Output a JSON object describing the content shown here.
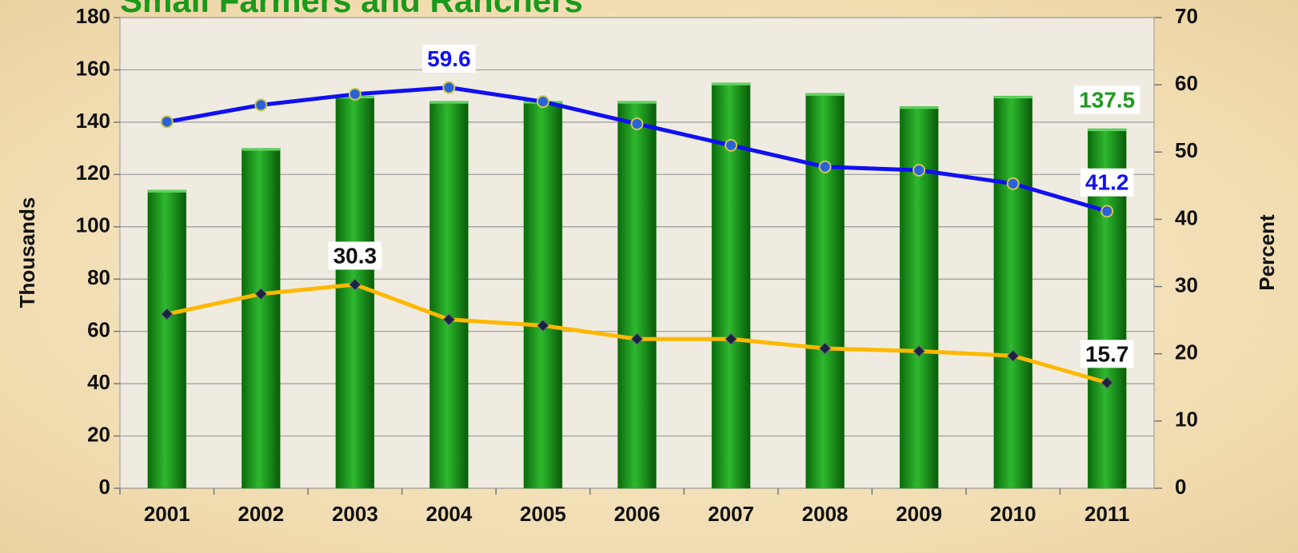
{
  "chart_data": {
    "type": "bar",
    "title": "Small Farmers and Ranchers",
    "y_label": "Thousands",
    "y2_label": "Percent",
    "categories": [
      "2001",
      "2002",
      "2003",
      "2004",
      "2005",
      "2006",
      "2007",
      "2008",
      "2009",
      "2010",
      "2011"
    ],
    "ylim": [
      0,
      180
    ],
    "yticks": [
      0,
      20,
      40,
      60,
      80,
      100,
      120,
      140,
      160,
      180
    ],
    "y2lim": [
      0,
      70
    ],
    "y2ticks": [
      0,
      10,
      20,
      30,
      40,
      50,
      60,
      70
    ],
    "grid": true,
    "series": [
      {
        "type": "bar",
        "color": "#1f9a1f",
        "label_color": "#1f9a1f",
        "values": [
          114,
          130,
          150,
          148,
          148,
          148,
          155,
          151,
          146,
          150,
          137.5
        ],
        "value_labels": [
          null,
          null,
          null,
          null,
          null,
          null,
          null,
          null,
          null,
          null,
          "137.5"
        ]
      },
      {
        "type": "line",
        "axis": "y2",
        "color": "#1010f0",
        "marker": "circle",
        "marker_color": "#2a62d8",
        "label_color": "#1010f0",
        "values": [
          54.5,
          57.0,
          58.6,
          59.6,
          57.5,
          54.2,
          51.0,
          47.8,
          47.3,
          45.3,
          41.2
        ],
        "value_labels": [
          null,
          null,
          null,
          "59.6",
          null,
          null,
          null,
          null,
          null,
          null,
          "41.2"
        ]
      },
      {
        "type": "line",
        "axis": "y2",
        "color": "#ffb800",
        "marker": "diamond",
        "marker_color": "#1a2440",
        "label_color": "#111111",
        "values": [
          25.9,
          28.9,
          30.3,
          25.1,
          24.2,
          22.2,
          22.2,
          20.8,
          20.4,
          19.7,
          15.7
        ],
        "value_labels": [
          null,
          null,
          "30.3",
          null,
          null,
          null,
          null,
          null,
          null,
          null,
          "15.7"
        ]
      }
    ]
  }
}
